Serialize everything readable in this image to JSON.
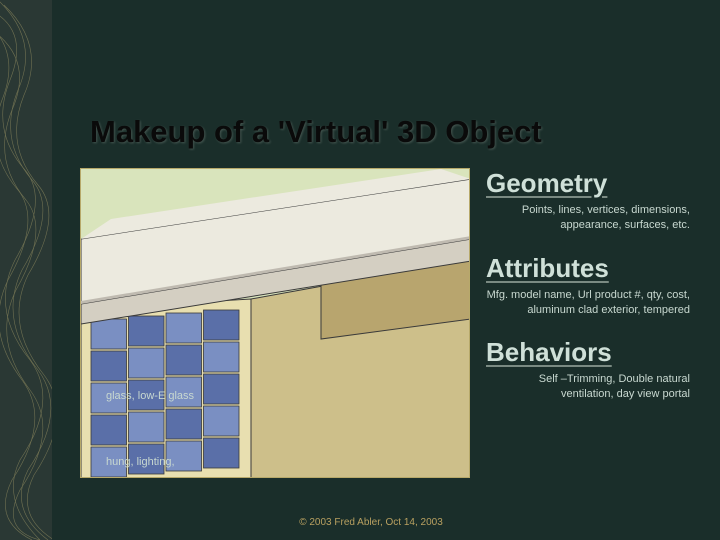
{
  "title": "Makeup of a 'Virtual' 3D Object",
  "sections": [
    {
      "heading": "Geometry",
      "body": "Points, lines, vertices, dimensions, appearance, surfaces, etc."
    },
    {
      "heading": "Attributes",
      "body": "Mfg. model name, Url product #, qty, cost, aluminum clad exterior, tempered"
    },
    {
      "heading": "Behaviors",
      "body": "Self –Trimming, Double natural ventilation, day view portal"
    }
  ],
  "callouts": {
    "a": "glass, low-E glass",
    "b": "hung,\nlighting,"
  },
  "footer": {
    "copy": "© 2003",
    "rest": "Fred Abler, Oct 14, 2003"
  },
  "diagram": {
    "sky": "#d9e4bc",
    "roof_top": "#eceadf",
    "roof_side": "#d4cfc2",
    "wall_light": "#e8dfb0",
    "wall_med": "#cdbf8a",
    "wall_dark": "#b8a56e",
    "glass_blue": "#7a8fc2",
    "glass_blue_dark": "#5a6fa8",
    "mullion": "#3a3a3a",
    "decor_stroke": "#c8c090"
  }
}
